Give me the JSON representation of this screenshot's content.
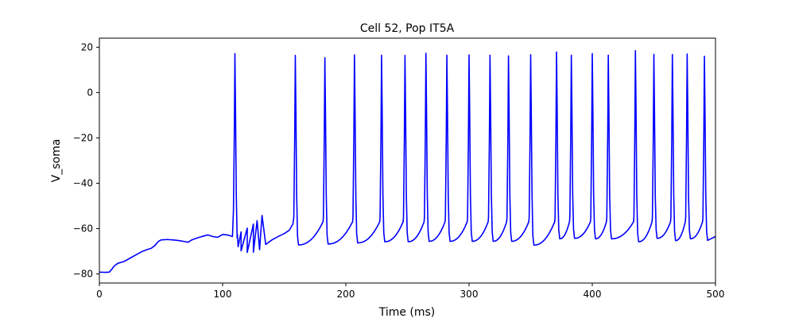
{
  "chart_data": {
    "type": "line",
    "title": "Cell 52, Pop IT5A",
    "xlabel": "Time (ms)",
    "ylabel": "V_soma",
    "xlim": [
      0,
      500
    ],
    "ylim": [
      -84,
      24
    ],
    "xticks": [
      0,
      100,
      200,
      300,
      400,
      500
    ],
    "yticks": [
      -80,
      -60,
      -40,
      -20,
      0,
      20
    ],
    "grid": false,
    "color": "#0000ff",
    "series": [
      {
        "baseline": [
          [
            0,
            -79.2
          ],
          [
            5,
            -79.3
          ],
          [
            8,
            -79.2
          ],
          [
            10,
            -78.0
          ],
          [
            12,
            -76.5
          ],
          [
            15,
            -75.3
          ],
          [
            20,
            -74.5
          ],
          [
            25,
            -73.0
          ],
          [
            30,
            -71.5
          ],
          [
            35,
            -70.0
          ],
          [
            40,
            -69.0
          ],
          [
            42,
            -68.7
          ],
          [
            45,
            -67.5
          ],
          [
            48,
            -65.6
          ],
          [
            50,
            -65.0
          ],
          [
            55,
            -64.8
          ],
          [
            60,
            -65.0
          ],
          [
            65,
            -65.3
          ],
          [
            70,
            -65.8
          ],
          [
            72,
            -66.0
          ],
          [
            75,
            -65.0
          ],
          [
            80,
            -64.0
          ],
          [
            85,
            -63.2
          ],
          [
            88,
            -62.8
          ],
          [
            92,
            -63.5
          ],
          [
            96,
            -63.8
          ],
          [
            100,
            -62.6
          ],
          [
            104,
            -62.8
          ],
          [
            108,
            -63.5
          ],
          [
            112,
            -62.5
          ],
          [
            115,
            -61.5
          ],
          [
            120,
            -59.8
          ],
          [
            125,
            -58.0
          ],
          [
            128,
            -56.5
          ],
          [
            132,
            -54.2
          ]
        ],
        "spikes": [
          {
            "t": 110,
            "peak": 17.2,
            "trough": -68.0
          },
          {
            "t": 159,
            "peak": 16.4,
            "trough": -67.2
          },
          {
            "t": 183,
            "peak": 15.4,
            "trough": -66.8
          },
          {
            "t": 207,
            "peak": 16.6,
            "trough": -66.3
          },
          {
            "t": 229,
            "peak": 16.5,
            "trough": -65.8
          },
          {
            "t": 248,
            "peak": 16.4,
            "trough": -65.8
          },
          {
            "t": 265,
            "peak": 17.3,
            "trough": -65.6
          },
          {
            "t": 282,
            "peak": 16.5,
            "trough": -65.6
          },
          {
            "t": 300,
            "peak": 16.6,
            "trough": -65.6
          },
          {
            "t": 317,
            "peak": 16.5,
            "trough": -65.6
          },
          {
            "t": 332,
            "peak": 16.2,
            "trough": -65.6
          },
          {
            "t": 350,
            "peak": 16.7,
            "trough": -67.3
          },
          {
            "t": 371,
            "peak": 17.9,
            "trough": -64.5
          },
          {
            "t": 383,
            "peak": 16.5,
            "trough": -64.3
          },
          {
            "t": 400,
            "peak": 17.2,
            "trough": -64.5
          },
          {
            "t": 413,
            "peak": 16.5,
            "trough": -64.5
          },
          {
            "t": 435,
            "peak": 18.5,
            "trough": -65.8
          },
          {
            "t": 450,
            "peak": 16.9,
            "trough": -64.3
          },
          {
            "t": 465,
            "peak": 16.8,
            "trough": -65.3
          },
          {
            "t": 477,
            "peak": 17.0,
            "trough": -64.5
          },
          {
            "t": 491,
            "peak": 16.0,
            "trough": -65.2
          }
        ],
        "isi_start": -66.0,
        "isi_end_before_spike": -57.0,
        "final_value": -63.5
      }
    ]
  }
}
